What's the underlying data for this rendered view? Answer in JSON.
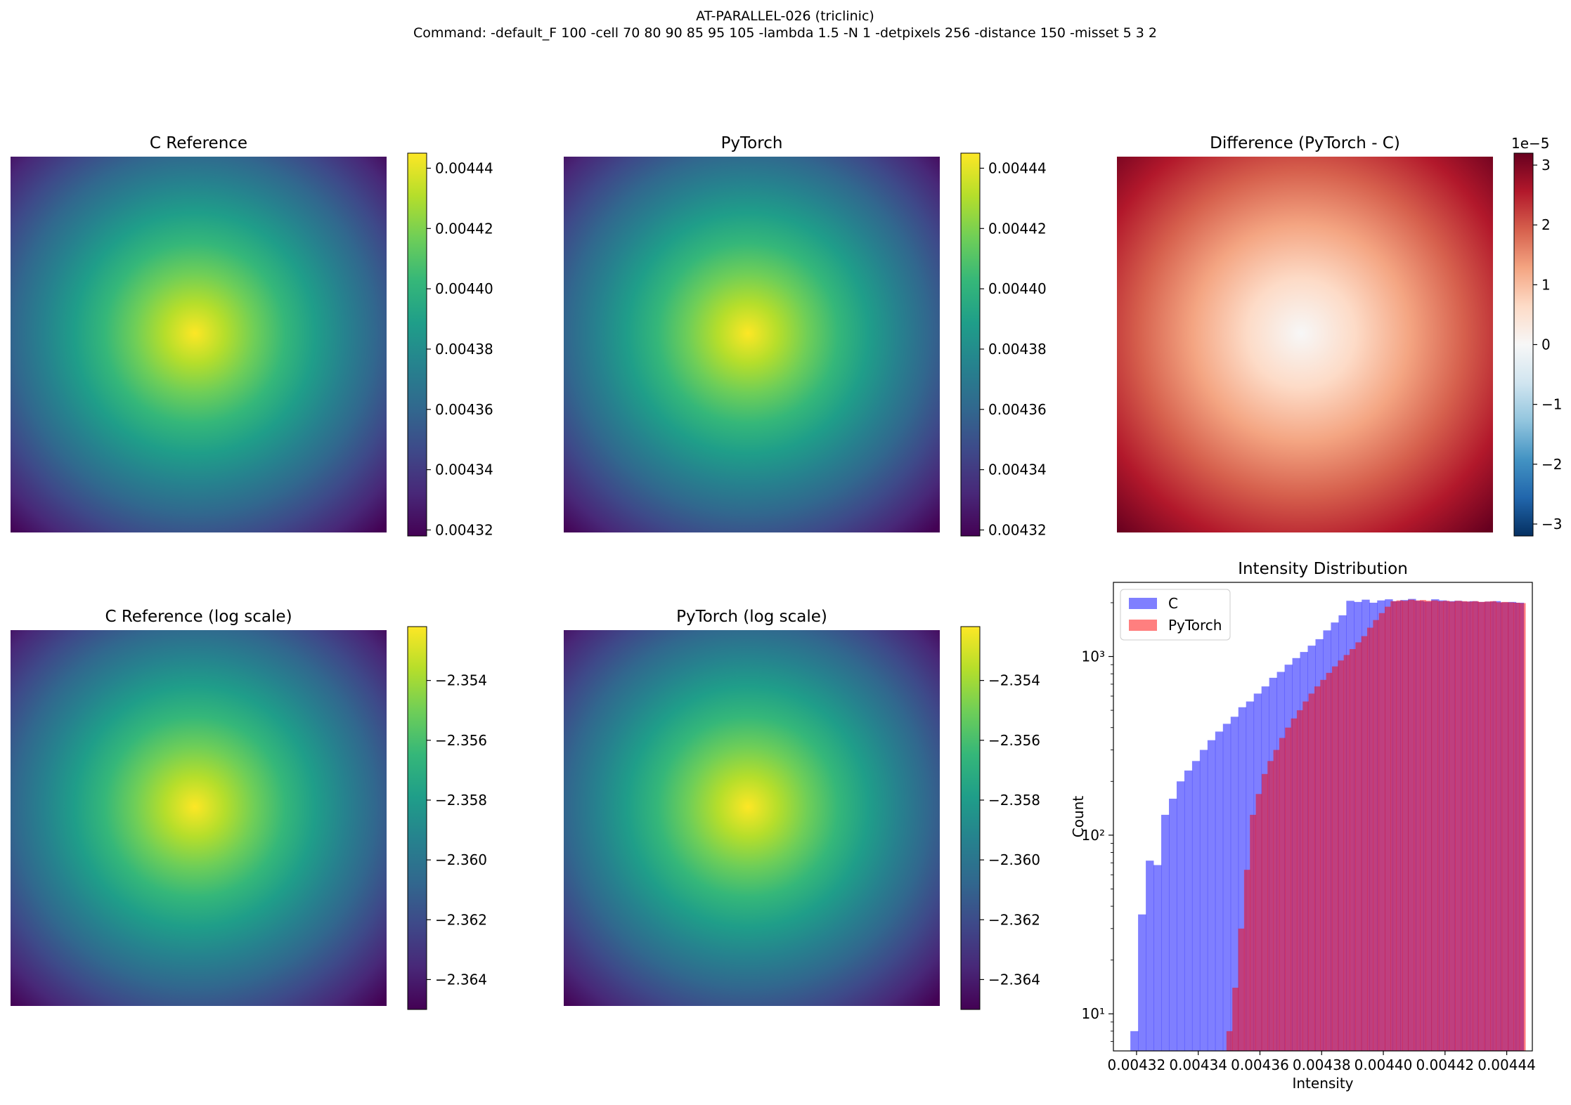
{
  "figure": {
    "title": "AT-PARALLEL-026 (triclinic)",
    "subtitle": "Command: -default_F 100 -cell 70 80 90 85 95 105 -lambda 1.5 -N 1 -detpixels 256 -distance 150 -misset 5 3 2"
  },
  "colors": {
    "viridis": [
      "#440154",
      "#482878",
      "#3e4989",
      "#31688e",
      "#26828e",
      "#1f9e89",
      "#35b779",
      "#6ece58",
      "#b5de2b",
      "#fde725"
    ],
    "rdbu_r": [
      "#053061",
      "#2166ac",
      "#4393c3",
      "#92c5de",
      "#d1e5f0",
      "#f7f7f7",
      "#fddbc7",
      "#f4a582",
      "#d6604d",
      "#b2182b",
      "#67001f"
    ],
    "hist_c": "#0000ff",
    "hist_pytorch": "#ff0000"
  },
  "chart_data": [
    {
      "id": "c-reference",
      "type": "heatmap",
      "title": "C Reference",
      "colormap": "viridis",
      "vmin": 0.004318,
      "vmax": 0.004445,
      "peak_value": 0.004444,
      "peak_center": [
        0.49,
        0.47
      ],
      "colorbar_ticks": [
        "0.00432",
        "0.00434",
        "0.00436",
        "0.00438",
        "0.00440",
        "0.00442",
        "0.00444"
      ],
      "colorbar_tick_values": [
        0.00432,
        0.00434,
        0.00436,
        0.00438,
        0.0044,
        0.00442,
        0.00444
      ]
    },
    {
      "id": "pytorch",
      "type": "heatmap",
      "title": "PyTorch",
      "colormap": "viridis",
      "vmin": 0.004318,
      "vmax": 0.004445,
      "peak_value": 0.004444,
      "peak_center": [
        0.49,
        0.47
      ],
      "colorbar_ticks": [
        "0.00432",
        "0.00434",
        "0.00436",
        "0.00438",
        "0.00440",
        "0.00442",
        "0.00444"
      ],
      "colorbar_tick_values": [
        0.00432,
        0.00434,
        0.00436,
        0.00438,
        0.0044,
        0.00442,
        0.00444
      ]
    },
    {
      "id": "difference",
      "type": "heatmap",
      "title": "Difference (PyTorch - C)",
      "colormap": "rdbu_r",
      "vmin": -3.2e-05,
      "vmax": 3.2e-05,
      "scale_label": "1e−5",
      "peak_center": [
        0.49,
        0.47
      ],
      "colorbar_ticks": [
        "−3",
        "−2",
        "−1",
        "0",
        "1",
        "2",
        "3"
      ],
      "colorbar_tick_values": [
        -3,
        -2,
        -1,
        0,
        1,
        2,
        3
      ]
    },
    {
      "id": "c-reference-log",
      "type": "heatmap",
      "title": "C Reference (log scale)",
      "colormap": "viridis",
      "vmin": -2.365,
      "vmax": -2.3522,
      "peak_center": [
        0.49,
        0.47
      ],
      "colorbar_ticks": [
        "−2.364",
        "−2.362",
        "−2.360",
        "−2.358",
        "−2.356",
        "−2.354"
      ],
      "colorbar_tick_values": [
        -2.364,
        -2.362,
        -2.36,
        -2.358,
        -2.356,
        -2.354
      ]
    },
    {
      "id": "pytorch-log",
      "type": "heatmap",
      "title": "PyTorch (log scale)",
      "colormap": "viridis",
      "vmin": -2.365,
      "vmax": -2.3522,
      "peak_center": [
        0.49,
        0.47
      ],
      "colorbar_ticks": [
        "−2.364",
        "−2.362",
        "−2.360",
        "−2.358",
        "−2.356",
        "−2.354"
      ],
      "colorbar_tick_values": [
        -2.364,
        -2.362,
        -2.36,
        -2.358,
        -2.356,
        -2.354
      ]
    },
    {
      "id": "intensity-distribution",
      "type": "bar",
      "subtype": "histogram",
      "title": "Intensity Distribution",
      "xlabel": "Intensity",
      "ylabel": "Count",
      "yscale": "log",
      "xlim": [
        0.0043125,
        0.0044483
      ],
      "ylim": [
        6.2,
        2600
      ],
      "xticks": [
        "0.00432",
        "0.00434",
        "0.00436",
        "0.00438",
        "0.00440",
        "0.00442",
        "0.00444"
      ],
      "xtick_values": [
        0.00432,
        0.00434,
        0.00436,
        0.00438,
        0.0044,
        0.00442,
        0.00444
      ],
      "yticks": [
        "10¹",
        "10²",
        "10³"
      ],
      "ytick_values": [
        10,
        100,
        1000
      ],
      "legend": "top-left",
      "series": [
        {
          "name": "C",
          "color": "#0000ff",
          "alpha": 0.5,
          "bin_edges": [
            0.004318,
            0.0043205,
            0.004323,
            0.0043255,
            0.004328,
            0.0043305,
            0.004333,
            0.0043355,
            0.004338,
            0.0043405,
            0.004343,
            0.0043455,
            0.004348,
            0.0043505,
            0.004353,
            0.0043555,
            0.004358,
            0.0043605,
            0.004363,
            0.0043655,
            0.004368,
            0.0043705,
            0.004373,
            0.0043755,
            0.004378,
            0.0043805,
            0.004383,
            0.0043855,
            0.004388,
            0.0043905,
            0.004393,
            0.0043955,
            0.004398,
            0.0044005,
            0.004403,
            0.0044055,
            0.004408,
            0.0044105,
            0.004413,
            0.0044155,
            0.004418,
            0.0044205,
            0.004423,
            0.0044255,
            0.004428,
            0.0044305,
            0.004433,
            0.0044355,
            0.004438,
            0.0044405,
            0.004443,
            0.0044455
          ],
          "counts": [
            8,
            36,
            72,
            68,
            130,
            160,
            200,
            230,
            260,
            300,
            340,
            380,
            420,
            460,
            520,
            560,
            620,
            680,
            760,
            820,
            900,
            980,
            1060,
            1150,
            1250,
            1400,
            1550,
            1700,
            2050,
            2020,
            2080,
            2000,
            2060,
            2090,
            2040,
            2070,
            2100,
            2050,
            2030,
            2090,
            2060,
            2040,
            2050,
            2030,
            2040,
            2020,
            2030,
            2040,
            2010,
            2020,
            2000
          ]
        },
        {
          "name": "PyTorch",
          "color": "#ff0000",
          "alpha": 0.5,
          "bin_edges": [
            0.00434915,
            0.00435105,
            0.00435295,
            0.00435485,
            0.00435675,
            0.00435865,
            0.00436055,
            0.00436245,
            0.00436435,
            0.00436625,
            0.00436815,
            0.00437005,
            0.00437195,
            0.00437385,
            0.00437575,
            0.00437765,
            0.00437955,
            0.00438145,
            0.00438335,
            0.00438525,
            0.00438715,
            0.00438905,
            0.00439095,
            0.00439285,
            0.00439475,
            0.00439665,
            0.00439855,
            0.00440045,
            0.00440235,
            0.00440425,
            0.00440615,
            0.00440805,
            0.00440995,
            0.00441185,
            0.00441375,
            0.00441565,
            0.00441755,
            0.00441945,
            0.00442135,
            0.00442325,
            0.00442515,
            0.00442705,
            0.00442895,
            0.00443085,
            0.00443275,
            0.00443465,
            0.00443655,
            0.00443845,
            0.00444035,
            0.00444225,
            0.00444415,
            0.00444605
          ],
          "counts": [
            8,
            14,
            30,
            64,
            130,
            170,
            220,
            260,
            300,
            350,
            400,
            450,
            500,
            560,
            620,
            680,
            740,
            810,
            880,
            950,
            1020,
            1100,
            1200,
            1300,
            1450,
            1600,
            1750,
            1900,
            2040,
            2060,
            2050,
            2080,
            2060,
            2070,
            2050,
            2060,
            2040,
            2050,
            2030,
            2050,
            2040,
            2030,
            2040,
            2020,
            2030,
            2040,
            2010,
            2020,
            2010,
            2000,
            1990
          ]
        }
      ]
    }
  ]
}
